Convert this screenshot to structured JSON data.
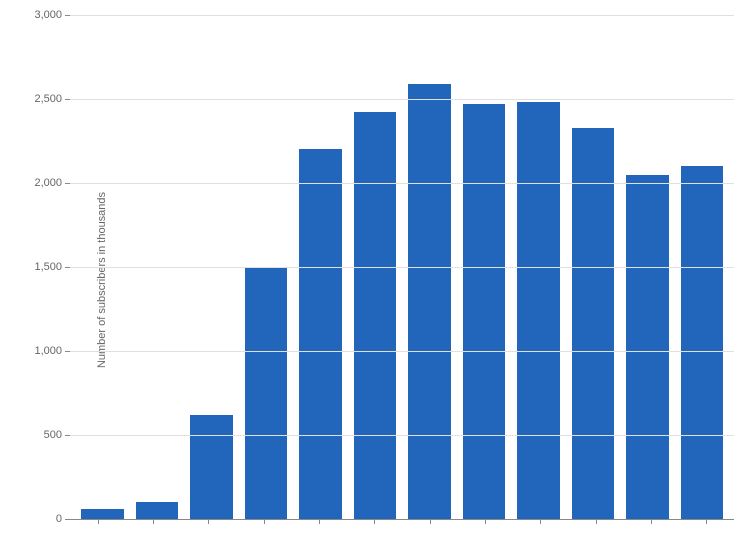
{
  "chart": {
    "type": "bar",
    "ylabel": "Number of subscribers in thousands",
    "label_fontsize": 11,
    "ylim": [
      0,
      3000
    ],
    "yticks": [
      0,
      500,
      1000,
      1500,
      2000,
      2500,
      3000
    ],
    "ytick_labels": [
      "0",
      "500",
      "1,000",
      "1,500",
      "2,000",
      "2,500",
      "3,000"
    ],
    "values": [
      60,
      100,
      620,
      1500,
      2200,
      2420,
      2590,
      2470,
      2480,
      2330,
      2050,
      2100
    ],
    "bar_color": "#2266bb",
    "background_color": "#ffffff",
    "grid_color": "#e0e0e0",
    "axis_line_color": "#888888",
    "tick_label_color": "#666666"
  }
}
